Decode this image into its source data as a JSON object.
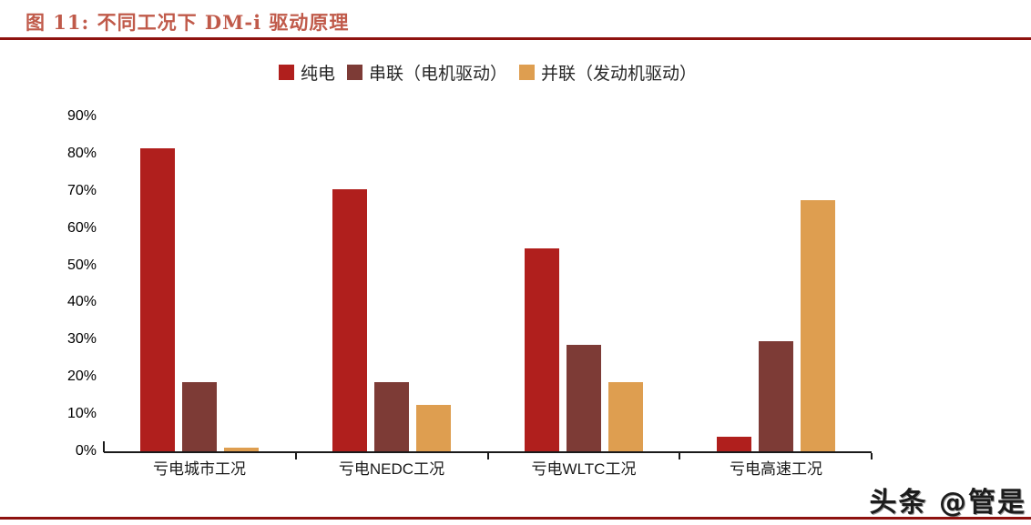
{
  "figure": {
    "title": "图 11: 不同工况下 DM-i 驱动原理",
    "watermark": "头条 @管是"
  },
  "colors": {
    "title_text": "#c05a4a",
    "rule": "#8e120f",
    "axis": "#1a1a1a",
    "series": [
      "#b01f1d",
      "#7d3b36",
      "#de9e50"
    ]
  },
  "chart_data": {
    "type": "bar",
    "title": "不同工况下 DM-i 驱动原理",
    "categories": [
      "亏电城市工况",
      "亏电NEDC工况",
      "亏电WLTC工况",
      "亏电高速工况"
    ],
    "series": [
      {
        "name": "纯电",
        "values": [
          81.5,
          70.5,
          54.5,
          4
        ]
      },
      {
        "name": "串联（电机驱动）",
        "values": [
          18.5,
          18.5,
          28.5,
          29.5
        ]
      },
      {
        "name": "并联（发动机驱动）",
        "values": [
          1,
          12.5,
          18.5,
          67.5
        ]
      }
    ],
    "xlabel": "",
    "ylabel": "",
    "ylim": [
      0,
      90
    ],
    "yticks": [
      "0%",
      "10%",
      "20%",
      "30%",
      "40%",
      "50%",
      "60%",
      "70%",
      "80%",
      "90%"
    ],
    "grid": false,
    "legend_position": "top"
  }
}
